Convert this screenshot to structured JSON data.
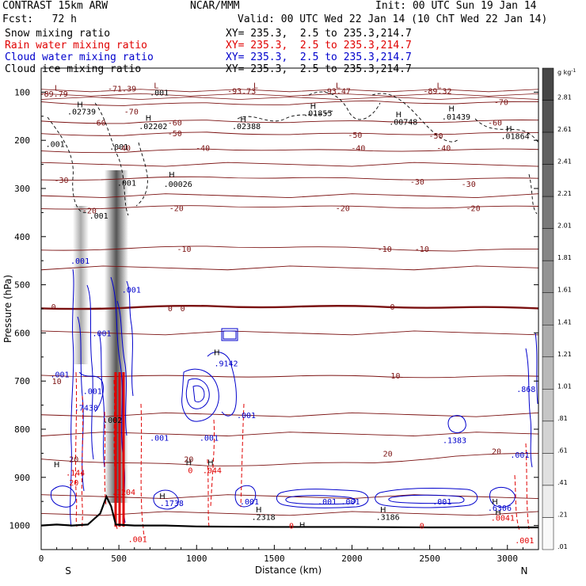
{
  "header": {
    "model": "CONTRAST 15km ARW",
    "forecast": "Fcst:   72 h",
    "center": "NCAR/MMM",
    "init": "Init: 00 UTC Sun 19 Jan 14",
    "valid": "Valid: 00 UTC Wed 22 Jan 14 (10 ChT Wed 22 Jan 14)"
  },
  "legend": [
    {
      "label": "Snow mixing ratio",
      "xy": "XY= 235.3,  2.5 to 235.3,214.7",
      "color": "#000000"
    },
    {
      "label": "Rain water mixing ratio",
      "xy": "XY= 235.3,  2.5 to 235.3,214.7",
      "color": "#e00000"
    },
    {
      "label": "Cloud water mixing ratio",
      "xy": "XY= 235.3,  2.5 to 235.3,214.7",
      "color": "#0000cc"
    },
    {
      "label": "Cloud ice mixing ratio",
      "xy": "XY= 235.3,  2.5 to 235.3,214.7",
      "color": "#000000"
    }
  ],
  "chart_data": {
    "type": "contour-cross-section",
    "xlabel": "Distance (km)",
    "ylabel": "Pressure (hPa)",
    "xlim": [
      0,
      3200
    ],
    "ylim": [
      1050,
      50
    ],
    "x_ticks": [
      0,
      500,
      1000,
      1500,
      2000,
      2500,
      3000
    ],
    "y_ticks": [
      100,
      200,
      300,
      400,
      500,
      600,
      700,
      800,
      900,
      1000
    ],
    "endpoints": {
      "left": "S",
      "right": "N"
    },
    "colorbar": {
      "unit": "g kg",
      "unit_exp": "-1",
      "labels": [
        "2.81",
        "2.61",
        "2.41",
        "2.21",
        "2.01",
        "1.81",
        "1.61",
        "1.41",
        "1.21",
        "1.01",
        ".81",
        ".61",
        ".41",
        ".21",
        ".01"
      ]
    },
    "temperature_contours": [
      {
        "t": -70,
        "p": [
          120,
          128,
          122,
          126,
          118,
          124,
          120
        ]
      },
      {
        "t": -60,
        "p": [
          160,
          165,
          158,
          163,
          160,
          162,
          158
        ]
      },
      {
        "t": -50,
        "p": [
          186,
          190,
          183,
          188,
          186,
          187,
          184
        ]
      },
      {
        "t": -40,
        "p": [
          222,
          225,
          218,
          220,
          222,
          220,
          219
        ]
      },
      {
        "t": -30,
        "p": [
          282,
          280,
          276,
          278,
          280,
          281,
          279
        ]
      },
      {
        "t": -20,
        "p": [
          342,
          340,
          336,
          338,
          338,
          340,
          337
        ]
      },
      {
        "t": -10,
        "p": [
          428,
          425,
          420,
          422,
          424,
          430,
          426
        ]
      },
      {
        "t": 0,
        "p": [
          549,
          548,
          544,
          546,
          545,
          547,
          549
        ]
      },
      {
        "t": 10,
        "p": [
          688,
          690,
          690,
          690,
          690,
          692,
          690
        ]
      },
      {
        "t": 20,
        "p": [
          862,
          870,
          876,
          872,
          870,
          856,
          850
        ]
      }
    ],
    "temperature_labels": [
      {
        "text": "-71.39",
        "x": 520,
        "p": 92
      },
      {
        "text": "-93.73",
        "x": 1290,
        "p": 97
      },
      {
        "text": "-93.47",
        "x": 1900,
        "p": 97
      },
      {
        "text": "-89.32",
        "x": 2550,
        "p": 97
      },
      {
        "text": "-89.79",
        "x": 80,
        "p": 103
      },
      {
        "text": "-70",
        "x": 2960,
        "p": 120
      },
      {
        "text": "-70",
        "x": 580,
        "p": 140
      },
      {
        "text": "-60",
        "x": 370,
        "p": 163
      },
      {
        "text": "-60",
        "x": 860,
        "p": 163
      },
      {
        "text": "-60",
        "x": 2920,
        "p": 163
      },
      {
        "text": "-50",
        "x": 860,
        "p": 185
      },
      {
        "text": "-50",
        "x": 2020,
        "p": 188
      },
      {
        "text": "-50",
        "x": 2540,
        "p": 190
      },
      {
        "text": "-40",
        "x": 530,
        "p": 215
      },
      {
        "text": "-40",
        "x": 1040,
        "p": 215
      },
      {
        "text": "-40",
        "x": 2040,
        "p": 215
      },
      {
        "text": "-40",
        "x": 2590,
        "p": 215
      },
      {
        "text": "-30",
        "x": 130,
        "p": 282
      },
      {
        "text": "-30",
        "x": 2420,
        "p": 285
      },
      {
        "text": "-30",
        "x": 2750,
        "p": 290
      },
      {
        "text": "-20",
        "x": 310,
        "p": 345
      },
      {
        "text": "-20",
        "x": 870,
        "p": 340
      },
      {
        "text": "-20",
        "x": 1940,
        "p": 340
      },
      {
        "text": "-20",
        "x": 2780,
        "p": 340
      },
      {
        "text": "-10",
        "x": 920,
        "p": 425
      },
      {
        "text": "-10",
        "x": 2210,
        "p": 425
      },
      {
        "text": "-10",
        "x": 2450,
        "p": 425
      },
      {
        "text": "0",
        "x": 80,
        "p": 545
      },
      {
        "text": "0",
        "x": 830,
        "p": 548
      },
      {
        "text": "0",
        "x": 910,
        "p": 548
      },
      {
        "text": "0",
        "x": 2260,
        "p": 545
      },
      {
        "text": "10",
        "x": 100,
        "p": 700
      },
      {
        "text": "10",
        "x": 2280,
        "p": 688
      },
      {
        "text": "20",
        "x": 210,
        "p": 862
      },
      {
        "text": "20",
        "x": 950,
        "p": 862
      },
      {
        "text": "20",
        "x": 2230,
        "p": 850
      },
      {
        "text": "20",
        "x": 2930,
        "p": 845
      }
    ],
    "hl_markers": [
      {
        "kind": "L",
        "x": 100,
        "p": 90
      },
      {
        "kind": "L",
        "x": 740,
        "p": 85
      },
      {
        "kind": "L",
        "x": 1380,
        "p": 85
      },
      {
        "kind": "L",
        "x": 1910,
        "p": 85
      },
      {
        "kind": "L",
        "x": 2560,
        "p": 85
      },
      {
        "kind": "H",
        "x": 250,
        "p": 125
      },
      {
        "kind": "H",
        "x": 690,
        "p": 153
      },
      {
        "kind": "H",
        "x": 1300,
        "p": 155
      },
      {
        "kind": "H",
        "x": 1750,
        "p": 128
      },
      {
        "kind": "H",
        "x": 2300,
        "p": 145
      },
      {
        "kind": "H",
        "x": 2640,
        "p": 133
      },
      {
        "kind": "H",
        "x": 3010,
        "p": 175
      },
      {
        "kind": "H",
        "x": 840,
        "p": 270
      },
      {
        "kind": "H",
        "x": 1130,
        "p": 640
      },
      {
        "kind": "H",
        "x": 950,
        "p": 868
      },
      {
        "kind": "H",
        "x": 1090,
        "p": 868
      },
      {
        "kind": "H",
        "x": 780,
        "p": 938
      },
      {
        "kind": "H",
        "x": 1400,
        "p": 966
      },
      {
        "kind": "H",
        "x": 2200,
        "p": 966
      },
      {
        "kind": "H",
        "x": 2920,
        "p": 950
      },
      {
        "kind": "H",
        "x": 2940,
        "p": 972
      },
      {
        "kind": "H",
        "x": 1680,
        "p": 998
      },
      {
        "kind": "H",
        "x": 100,
        "p": 872
      }
    ],
    "value_labels": [
      {
        "text": ".001",
        "x": 760,
        "p": 100,
        "color": "black"
      },
      {
        "text": ".02739",
        "x": 260,
        "p": 140,
        "color": "black"
      },
      {
        "text": ".02202",
        "x": 720,
        "p": 170,
        "color": "black"
      },
      {
        "text": ".02388",
        "x": 1320,
        "p": 170,
        "color": "black"
      },
      {
        "text": ".01855",
        "x": 1780,
        "p": 143,
        "color": "black"
      },
      {
        "text": ".00748",
        "x": 2330,
        "p": 161,
        "color": "black"
      },
      {
        "text": ".01439",
        "x": 2670,
        "p": 150,
        "color": "black"
      },
      {
        "text": ".01864",
        "x": 3050,
        "p": 191,
        "color": "black"
      },
      {
        "text": ".001",
        "x": 90,
        "p": 207,
        "color": "black"
      },
      {
        "text": ".001",
        "x": 500,
        "p": 213,
        "color": "black"
      },
      {
        "text": ".00026",
        "x": 880,
        "p": 290,
        "color": "black"
      },
      {
        "text": ".001",
        "x": 550,
        "p": 288,
        "color": "black"
      },
      {
        "text": ".001",
        "x": 370,
        "p": 356,
        "color": "black"
      },
      {
        "text": ".001",
        "x": 250,
        "p": 450,
        "color": "blue"
      },
      {
        "text": ".001",
        "x": 580,
        "p": 510,
        "color": "blue"
      },
      {
        "text": ".001",
        "x": 390,
        "p": 600,
        "color": "blue"
      },
      {
        "text": ".9142",
        "x": 1190,
        "p": 663,
        "color": "blue"
      },
      {
        "text": ".001",
        "x": 120,
        "p": 686,
        "color": "blue"
      },
      {
        "text": ".7438",
        "x": 290,
        "p": 755,
        "color": "blue"
      },
      {
        "text": ".002",
        "x": 460,
        "p": 780,
        "color": "black"
      },
      {
        "text": ".001",
        "x": 1320,
        "p": 770,
        "color": "blue"
      },
      {
        "text": ".001",
        "x": 760,
        "p": 817,
        "color": "blue"
      },
      {
        "text": ".001",
        "x": 1080,
        "p": 817,
        "color": "blue"
      },
      {
        "text": ".1383",
        "x": 2660,
        "p": 822,
        "color": "blue"
      },
      {
        "text": ".001",
        "x": 3080,
        "p": 853,
        "color": "blue"
      },
      {
        "text": ".868",
        "x": 3120,
        "p": 716,
        "color": "blue"
      },
      {
        "text": ".044",
        "x": 1100,
        "p": 885,
        "color": "red"
      },
      {
        "text": "0",
        "x": 960,
        "p": 885,
        "color": "red"
      },
      {
        "text": ".144",
        "x": 220,
        "p": 890,
        "color": "red"
      },
      {
        "text": "20",
        "x": 210,
        "p": 910,
        "color": "red"
      },
      {
        "text": ".1738",
        "x": 840,
        "p": 953,
        "color": "blue"
      },
      {
        "text": ".001",
        "x": 1340,
        "p": 950,
        "color": "blue"
      },
      {
        "text": ".001",
        "x": 1840,
        "p": 950,
        "color": "blue"
      },
      {
        "text": ".001",
        "x": 1990,
        "p": 950,
        "color": "blue"
      },
      {
        "text": ".001",
        "x": 2580,
        "p": 950,
        "color": "blue"
      },
      {
        "text": ".2318",
        "x": 1430,
        "p": 982,
        "color": "black"
      },
      {
        "text": ".3186",
        "x": 2230,
        "p": 982,
        "color": "black"
      },
      {
        "text": ".6306",
        "x": 2950,
        "p": 963,
        "color": "blue"
      },
      {
        "text": ".0041",
        "x": 2970,
        "p": 983,
        "color": "red"
      },
      {
        "text": "0",
        "x": 1610,
        "p": 1000,
        "color": "red"
      },
      {
        "text": "0",
        "x": 2450,
        "p": 1000,
        "color": "red"
      },
      {
        "text": ".001",
        "x": 620,
        "p": 1028,
        "color": "red"
      },
      {
        "text": ".001",
        "x": 3110,
        "p": 1030,
        "color": "red"
      },
      {
        "text": ".1204",
        "x": 530,
        "p": 930,
        "color": "red"
      },
      {
        "text": ".001",
        "x": 330,
        "p": 720,
        "color": "blue"
      }
    ],
    "surface_pressure": [
      [
        0,
        1000
      ],
      [
        100,
        998
      ],
      [
        200,
        1000
      ],
      [
        300,
        998
      ],
      [
        380,
        975
      ],
      [
        420,
        940
      ],
      [
        450,
        960
      ],
      [
        480,
        998
      ],
      [
        600,
        1000
      ],
      [
        800,
        1000
      ],
      [
        1000,
        1002
      ],
      [
        1500,
        1003
      ],
      [
        2000,
        1003
      ],
      [
        2500,
        1004
      ],
      [
        3000,
        1004
      ],
      [
        3200,
        1004
      ]
    ]
  }
}
